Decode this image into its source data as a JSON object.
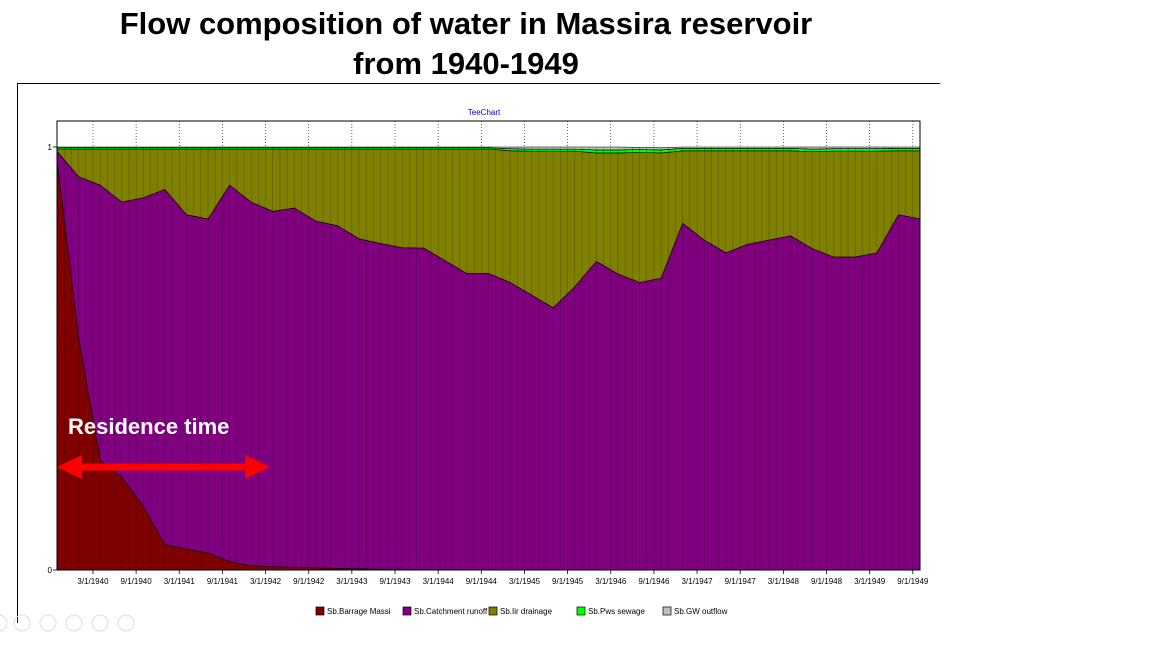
{
  "slide": {
    "title_line1": "Flow composition of water in Massira reservoir",
    "title_line2": "from 1940-1949"
  },
  "annotation": {
    "label": "Residence time",
    "arrow_color": "#ff0000"
  },
  "chart_data": {
    "type": "area",
    "stacked": true,
    "normalized": true,
    "title": "TeeChart",
    "ylim": [
      0,
      1
    ],
    "yticks": [
      0,
      1
    ],
    "xticks": [
      "3/1/1940",
      "9/1/1940",
      "3/1/1941",
      "9/1/1941",
      "3/1/1942",
      "9/1/1942",
      "3/1/1943",
      "9/1/1943",
      "3/1/1944",
      "9/1/1944",
      "3/1/1945",
      "9/1/1945",
      "3/1/1946",
      "9/1/1946",
      "3/1/1947",
      "9/1/1947",
      "3/1/1948",
      "9/1/1948",
      "3/1/1949",
      "9/1/1949"
    ],
    "grid": true,
    "legend_position": "bottom",
    "x": [
      "1939-10",
      "1940-01",
      "1940-04",
      "1940-07",
      "1940-10",
      "1941-01",
      "1941-04",
      "1941-07",
      "1941-10",
      "1942-01",
      "1942-04",
      "1942-07",
      "1942-10",
      "1943-01",
      "1943-04",
      "1943-07",
      "1943-10",
      "1944-01",
      "1944-04",
      "1944-07",
      "1944-10",
      "1945-01",
      "1945-04",
      "1945-07",
      "1945-10",
      "1946-01",
      "1946-04",
      "1946-07",
      "1946-10",
      "1947-01",
      "1947-04",
      "1947-07",
      "1947-10",
      "1948-01",
      "1948-04",
      "1948-07",
      "1948-10",
      "1949-01",
      "1949-04",
      "1949-07",
      "1949-10"
    ],
    "series": [
      {
        "name": "Sb.Barrage Massi",
        "color": "#800000",
        "values": [
          0.97,
          0.55,
          0.26,
          0.22,
          0.15,
          0.06,
          0.05,
          0.04,
          0.02,
          0.01,
          0.008,
          0.006,
          0.005,
          0.004,
          0.003,
          0.002,
          0.002,
          0.001,
          0.001,
          0.001,
          0.001,
          0,
          0,
          0,
          0,
          0,
          0,
          0,
          0,
          0,
          0,
          0,
          0,
          0,
          0,
          0,
          0,
          0,
          0,
          0,
          0
        ]
      },
      {
        "name": "Sb.Catchment runoff",
        "color": "#800080",
        "values": [
          0.02,
          0.38,
          0.65,
          0.65,
          0.73,
          0.84,
          0.79,
          0.79,
          0.89,
          0.86,
          0.84,
          0.85,
          0.82,
          0.81,
          0.78,
          0.77,
          0.76,
          0.76,
          0.73,
          0.7,
          0.7,
          0.68,
          0.65,
          0.62,
          0.67,
          0.73,
          0.7,
          0.68,
          0.69,
          0.82,
          0.78,
          0.75,
          0.77,
          0.78,
          0.79,
          0.76,
          0.74,
          0.74,
          0.75,
          0.84,
          0.83
        ]
      },
      {
        "name": "Sb.Iir drainage",
        "color": "#808000",
        "values": [
          0.005,
          0.065,
          0.085,
          0.125,
          0.115,
          0.095,
          0.155,
          0.165,
          0.085,
          0.125,
          0.147,
          0.139,
          0.17,
          0.181,
          0.212,
          0.223,
          0.233,
          0.234,
          0.264,
          0.294,
          0.294,
          0.311,
          0.34,
          0.37,
          0.32,
          0.256,
          0.286,
          0.307,
          0.296,
          0.171,
          0.211,
          0.241,
          0.221,
          0.211,
          0.201,
          0.229,
          0.25,
          0.25,
          0.24,
          0.151,
          0.161
        ]
      },
      {
        "name": "Sb.Pws sewage",
        "color": "#00ff00",
        "values": [
          0.003,
          0.003,
          0.003,
          0.003,
          0.003,
          0.003,
          0.003,
          0.003,
          0.003,
          0.003,
          0.003,
          0.003,
          0.003,
          0.003,
          0.003,
          0.003,
          0.003,
          0.003,
          0.003,
          0.003,
          0.003,
          0.005,
          0.005,
          0.005,
          0.005,
          0.007,
          0.007,
          0.007,
          0.007,
          0.006,
          0.006,
          0.006,
          0.006,
          0.006,
          0.006,
          0.006,
          0.006,
          0.006,
          0.006,
          0.006,
          0.006
        ]
      },
      {
        "name": "Sb.GW outflow",
        "color": "#c0c0c0",
        "values": [
          0.002,
          0.002,
          0.002,
          0.002,
          0.002,
          0.002,
          0.002,
          0.002,
          0.002,
          0.002,
          0.002,
          0.002,
          0.002,
          0.002,
          0.002,
          0.002,
          0.002,
          0.002,
          0.002,
          0.002,
          0.002,
          0.004,
          0.005,
          0.005,
          0.005,
          0.007,
          0.007,
          0.005,
          0.005,
          0.003,
          0.003,
          0.003,
          0.003,
          0.003,
          0.003,
          0.005,
          0.004,
          0.004,
          0.004,
          0.003,
          0.003
        ]
      }
    ]
  }
}
